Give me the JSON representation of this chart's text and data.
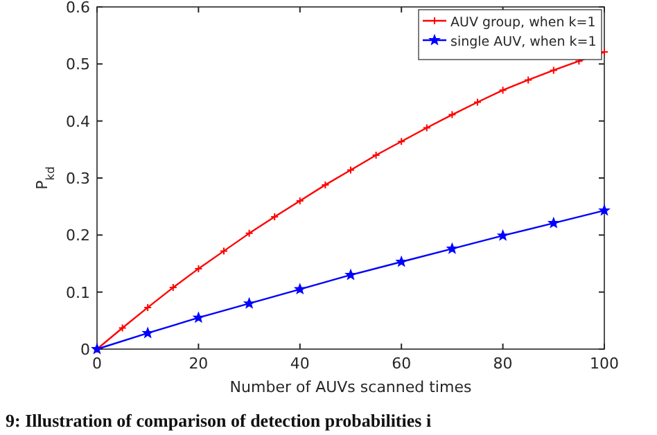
{
  "chart_data": {
    "type": "line",
    "xlabel": "Number of AUVs scanned times",
    "ylabel": "P$_{kd}$",
    "annotations": [
      "9: Illustration of comparison of detection probabilities i"
    ],
    "xlim": [
      0,
      100
    ],
    "xticks": [
      0,
      20,
      40,
      60,
      80,
      100
    ],
    "ylim": [
      0,
      0.6
    ],
    "yticks": [
      0,
      0.1,
      0.2,
      0.3,
      0.4,
      0.5,
      0.6
    ],
    "grid": false,
    "legend": "top right",
    "series": [
      {
        "name": "AUV group, when k=1",
        "color": "#ff0000",
        "marker": "cross",
        "x": [
          0,
          5,
          10,
          15,
          20,
          25,
          30,
          35,
          40,
          45,
          50,
          55,
          60,
          65,
          70,
          75,
          80,
          85,
          90,
          95,
          100
        ],
        "values": [
          0,
          0.037,
          0.073,
          0.108,
          0.141,
          0.172,
          0.203,
          0.232,
          0.26,
          0.288,
          0.314,
          0.34,
          0.364,
          0.388,
          0.411,
          0.433,
          0.454,
          0.472,
          0.489,
          0.505,
          0.521
        ]
      },
      {
        "name": "single AUV, when k=1",
        "color": "#0000ff",
        "marker": "star",
        "x": [
          0,
          10,
          20,
          30,
          40,
          50,
          60,
          70,
          80,
          90,
          100
        ],
        "values": [
          0,
          0.028,
          0.055,
          0.08,
          0.105,
          0.13,
          0.153,
          0.176,
          0.199,
          0.221,
          0.243
        ]
      }
    ]
  }
}
